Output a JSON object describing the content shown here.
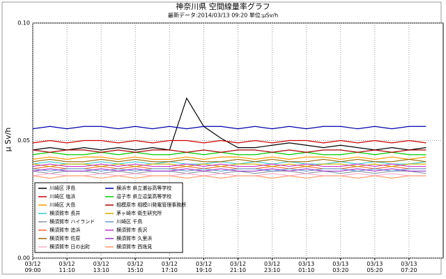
{
  "chart_data": {
    "type": "line",
    "title": "神奈川県 空間線量率グラフ",
    "subtitle": "最新データ:2014/03/13 09:20 単位:μSv/h",
    "y_label": "μ Sv/h",
    "categories": [
      "03/12\n09:00",
      null,
      "03/12\n11:10",
      null,
      "03/12\n13:10",
      null,
      "03/12\n15:10",
      null,
      "03/12\n17:10",
      null,
      "03/12\n19:10",
      null,
      "03/12\n21:10",
      null,
      "03/12\n23:10",
      null,
      "03/13\n01:10",
      null,
      "03/13\n03:20",
      null,
      "03/13\n05:20",
      null,
      "03/13\n07:20",
      null
    ],
    "ylim": [
      0,
      0.1
    ],
    "yticks": [
      {
        "value": 0,
        "label": "0.00"
      },
      0.05,
      {
        "value": 0.1,
        "label": "0.10"
      }
    ],
    "grid": true,
    "legend": "lower-left",
    "series": [
      {
        "name": "川崎区 浮島",
        "color": "#000000",
        "values": [
          0.046,
          0.047,
          0.046,
          0.047,
          0.046,
          0.047,
          0.046,
          0.047,
          0.046,
          0.068,
          0.056,
          0.051,
          0.047,
          0.047,
          0.048,
          0.049,
          0.048,
          0.047,
          0.048,
          0.047,
          0.046,
          0.047,
          0.046,
          0.047
        ]
      },
      {
        "name": "川崎区 塩浜",
        "color": "#cc0000",
        "values": [
          0.049,
          0.05,
          0.049,
          0.05,
          0.05,
          0.049,
          0.05,
          0.049,
          0.05,
          0.05,
          0.049,
          0.05,
          0.049,
          0.05,
          0.049,
          0.05,
          0.05,
          0.049,
          0.05,
          0.049,
          0.05,
          0.049,
          0.05,
          0.049
        ]
      },
      {
        "name": "川崎区 大島",
        "color": "#ff9900",
        "values": [
          0.042,
          0.043,
          0.042,
          0.043,
          0.043,
          0.042,
          0.043,
          0.042,
          0.042,
          0.043,
          0.042,
          0.043,
          0.043,
          0.042,
          0.043,
          0.042,
          0.043,
          0.043,
          0.042,
          0.043,
          0.042,
          0.043,
          0.042,
          0.043
        ]
      },
      {
        "name": "横須賀市 長井",
        "color": "#33cccc",
        "values": [
          0.04,
          0.041,
          0.04,
          0.04,
          0.041,
          0.04,
          0.041,
          0.04,
          0.041,
          0.04,
          0.04,
          0.041,
          0.04,
          0.041,
          0.04,
          0.041,
          0.04,
          0.04,
          0.041,
          0.04,
          0.041,
          0.04,
          0.04,
          0.041
        ]
      },
      {
        "name": "横須賀市 ハイランド",
        "color": "#8899aa",
        "values": [
          0.037,
          0.036,
          0.037,
          0.037,
          0.036,
          0.037,
          0.036,
          0.037,
          0.037,
          0.036,
          0.037,
          0.036,
          0.037,
          0.036,
          0.037,
          0.037,
          0.036,
          0.037,
          0.036,
          0.037,
          0.036,
          0.037,
          0.037,
          0.036
        ]
      },
      {
        "name": "横須賀市 追浜",
        "color": "#ff6633",
        "values": [
          0.038,
          0.039,
          0.038,
          0.038,
          0.039,
          0.038,
          0.039,
          0.038,
          0.038,
          0.039,
          0.038,
          0.039,
          0.038,
          0.038,
          0.039,
          0.038,
          0.039,
          0.038,
          0.038,
          0.039,
          0.038,
          0.039,
          0.038,
          0.038
        ]
      },
      {
        "name": "横須賀市 佐原",
        "color": "#996600",
        "values": [
          0.041,
          0.042,
          0.041,
          0.041,
          0.042,
          0.041,
          0.042,
          0.041,
          0.041,
          0.042,
          0.041,
          0.041,
          0.042,
          0.041,
          0.042,
          0.041,
          0.041,
          0.042,
          0.041,
          0.042,
          0.041,
          0.041,
          0.042,
          0.041
        ]
      },
      {
        "name": "横須賀市 日の出町",
        "color": "#ffaacc",
        "values": [
          0.035,
          0.036,
          0.035,
          0.035,
          0.036,
          0.035,
          0.036,
          0.035,
          0.035,
          0.036,
          0.035,
          0.036,
          0.035,
          0.035,
          0.036,
          0.035,
          0.036,
          0.035,
          0.035,
          0.036,
          0.035,
          0.036,
          0.035,
          0.035
        ]
      },
      {
        "name": "横浜市 県立瀬谷高等学校",
        "color": "#0000aa",
        "values": [
          0.055,
          0.056,
          0.055,
          0.056,
          0.056,
          0.055,
          0.056,
          0.055,
          0.056,
          0.055,
          0.056,
          0.056,
          0.055,
          0.056,
          0.055,
          0.056,
          0.055,
          0.056,
          0.056,
          0.055,
          0.056,
          0.055,
          0.056,
          0.056
        ]
      },
      {
        "name": "逗子市 県立逗葉高等学校",
        "color": "#00cc00",
        "values": [
          0.044,
          0.045,
          0.044,
          0.044,
          0.045,
          0.044,
          0.045,
          0.044,
          0.044,
          0.045,
          0.044,
          0.045,
          0.044,
          0.044,
          0.045,
          0.044,
          0.045,
          0.044,
          0.044,
          0.045,
          0.044,
          0.045,
          0.044,
          0.044
        ]
      },
      {
        "name": "相模原市 相模川発電管理事務所",
        "color": "#aa0000",
        "values": [
          0.046,
          0.045,
          0.046,
          0.046,
          0.045,
          0.046,
          0.045,
          0.046,
          0.046,
          0.045,
          0.046,
          0.045,
          0.046,
          0.046,
          0.045,
          0.046,
          0.045,
          0.046,
          0.046,
          0.045,
          0.046,
          0.045,
          0.046,
          0.046
        ]
      },
      {
        "name": "茅ヶ崎市 衛生研究所",
        "color": "#ccaa00",
        "values": [
          0.04,
          0.039,
          0.04,
          0.04,
          0.039,
          0.04,
          0.039,
          0.04,
          0.04,
          0.039,
          0.04,
          0.039,
          0.04,
          0.04,
          0.039,
          0.04,
          0.039,
          0.04,
          0.04,
          0.039,
          0.04,
          0.039,
          0.04,
          0.04
        ]
      },
      {
        "name": "川崎区 千鳥",
        "color": "#6699cc",
        "values": [
          0.038,
          0.037,
          0.038,
          0.038,
          0.037,
          0.038,
          0.037,
          0.038,
          0.038,
          0.037,
          0.038,
          0.037,
          0.038,
          0.038,
          0.037,
          0.038,
          0.037,
          0.038,
          0.038,
          0.037,
          0.038,
          0.037,
          0.038,
          0.038
        ]
      },
      {
        "name": "横須賀市 長沢",
        "color": "#cc33cc",
        "values": [
          0.039,
          0.04,
          0.039,
          0.039,
          0.04,
          0.039,
          0.04,
          0.039,
          0.039,
          0.04,
          0.039,
          0.04,
          0.039,
          0.039,
          0.04,
          0.039,
          0.04,
          0.039,
          0.039,
          0.04,
          0.039,
          0.04,
          0.039,
          0.039
        ]
      },
      {
        "name": "横須賀市 久里浜",
        "color": "#9933cc",
        "values": [
          0.037,
          0.038,
          0.037,
          0.037,
          0.038,
          0.037,
          0.038,
          0.037,
          0.037,
          0.038,
          0.037,
          0.038,
          0.037,
          0.037,
          0.038,
          0.037,
          0.038,
          0.037,
          0.037,
          0.038,
          0.037,
          0.038,
          0.037,
          0.037
        ]
      },
      {
        "name": "横須賀市 西逸見",
        "color": "#ff9966",
        "values": [
          0.035,
          0.034,
          0.035,
          0.035,
          0.034,
          0.035,
          0.034,
          0.035,
          0.035,
          0.034,
          0.035,
          0.034,
          0.035,
          0.035,
          0.034,
          0.035,
          0.034,
          0.035,
          0.035,
          0.034,
          0.035,
          0.034,
          0.035,
          0.035
        ]
      }
    ]
  }
}
